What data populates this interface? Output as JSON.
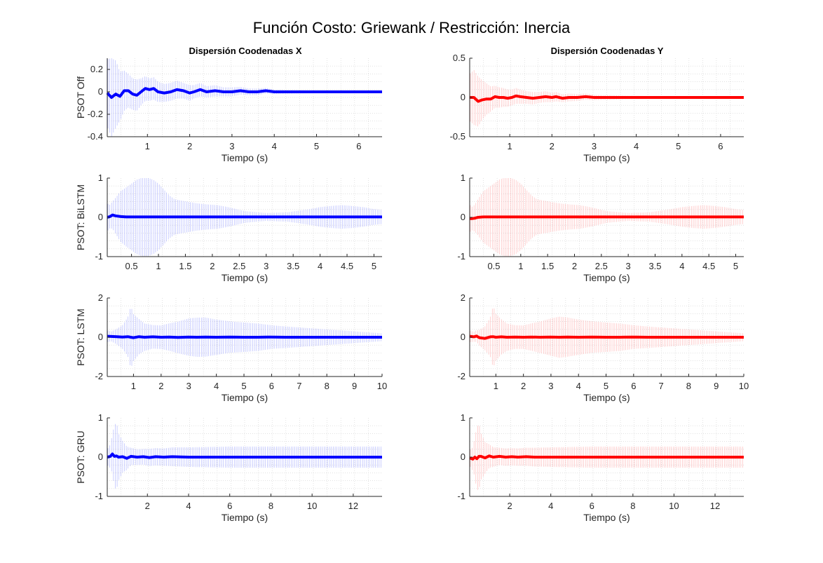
{
  "figure": {
    "title": "Función Costo: Griewank / Restricción: Inercia",
    "column_titles": [
      "Dispersión Coodenadas X",
      "Dispersión Coodenadas Y"
    ]
  },
  "colors": {
    "x_series": "#0000ff",
    "y_series": "#ff0000",
    "x_band": "#aab0ff",
    "y_band": "#ffb3b3",
    "grid": "#d0d0d0",
    "axis": "#262626"
  },
  "chart_data": [
    {
      "type": "line",
      "row": 0,
      "col": 0,
      "name": "psot-off-x",
      "ylabel": "PSOT Off",
      "xlabel": "Tiempo (s)",
      "xlim": [
        0.05,
        6.55
      ],
      "ylim": [
        -0.4,
        0.3
      ],
      "xticks": [
        1,
        2,
        3,
        4,
        5,
        6
      ],
      "xtick_labels": [
        "1",
        "2",
        "3",
        "4",
        "5",
        "6"
      ],
      "yticks": [
        -0.4,
        -0.2,
        0,
        0.2
      ],
      "ytick_labels": [
        "-0.4",
        "-0.2",
        "0",
        "0.2"
      ],
      "x": [
        0.05,
        0.15,
        0.25,
        0.35,
        0.45,
        0.55,
        0.65,
        0.75,
        0.85,
        0.95,
        1.05,
        1.15,
        1.25,
        1.4,
        1.55,
        1.7,
        1.85,
        2.0,
        2.1,
        2.25,
        2.4,
        2.6,
        2.8,
        3.0,
        3.2,
        3.4,
        3.6,
        3.8,
        4.0,
        4.5,
        5.0,
        5.5,
        6.0,
        6.55
      ],
      "mean": [
        -0.01,
        -0.05,
        -0.02,
        -0.04,
        0.01,
        0.01,
        -0.02,
        -0.03,
        0.0,
        0.03,
        0.02,
        0.03,
        0.0,
        -0.01,
        0.0,
        0.02,
        0.01,
        -0.01,
        0.0,
        0.02,
        0.0,
        0.01,
        0.0,
        0.0,
        0.01,
        0.0,
        0.0,
        0.01,
        0.0,
        0.0,
        0.0,
        0.0,
        0.0,
        0.0
      ],
      "spread": [
        0.3,
        0.35,
        0.3,
        0.22,
        0.18,
        0.15,
        0.14,
        0.14,
        0.12,
        0.11,
        0.1,
        0.1,
        0.09,
        0.08,
        0.08,
        0.08,
        0.07,
        0.07,
        0.06,
        0.06,
        0.05,
        0.05,
        0.04,
        0.04,
        0.035,
        0.03,
        0.03,
        0.025,
        0.02,
        0.015,
        0.012,
        0.01,
        0.01,
        0.01
      ]
    },
    {
      "type": "line",
      "row": 0,
      "col": 1,
      "name": "psot-off-y",
      "ylabel": "",
      "xlabel": "Tiempo (s)",
      "xlim": [
        0.05,
        6.55
      ],
      "ylim": [
        -0.5,
        0.5
      ],
      "xticks": [
        1,
        2,
        3,
        4,
        5,
        6
      ],
      "xtick_labels": [
        "1",
        "2",
        "3",
        "4",
        "5",
        "6"
      ],
      "yticks": [
        -0.5,
        0,
        0.5
      ],
      "ytick_labels": [
        "-0.5",
        "0",
        "0.5"
      ],
      "x": [
        0.05,
        0.15,
        0.25,
        0.35,
        0.45,
        0.55,
        0.65,
        0.75,
        0.85,
        0.95,
        1.05,
        1.15,
        1.25,
        1.4,
        1.55,
        1.7,
        1.85,
        2.0,
        2.1,
        2.25,
        2.4,
        2.6,
        2.8,
        3.0,
        3.2,
        3.4,
        3.6,
        3.8,
        4.0,
        4.5,
        5.0,
        5.5,
        6.0,
        6.55
      ],
      "mean": [
        0.0,
        0.0,
        -0.05,
        -0.03,
        -0.02,
        -0.02,
        0.01,
        0.0,
        0.0,
        -0.01,
        0.0,
        0.02,
        0.01,
        0.0,
        -0.01,
        0.0,
        0.01,
        0.0,
        0.01,
        -0.01,
        0.0,
        0.0,
        0.01,
        0.0,
        0.0,
        0.0,
        0.0,
        0.0,
        0.0,
        0.0,
        0.0,
        0.0,
        0.0,
        0.0
      ],
      "spread": [
        0.3,
        0.35,
        0.32,
        0.25,
        0.2,
        0.16,
        0.14,
        0.13,
        0.12,
        0.11,
        0.1,
        0.1,
        0.09,
        0.08,
        0.08,
        0.07,
        0.07,
        0.06,
        0.06,
        0.05,
        0.05,
        0.045,
        0.04,
        0.035,
        0.03,
        0.03,
        0.025,
        0.02,
        0.02,
        0.015,
        0.012,
        0.01,
        0.01,
        0.01
      ]
    },
    {
      "type": "line",
      "row": 1,
      "col": 0,
      "name": "psot-bilstm-x",
      "ylabel": "PSOT: BiLSTM",
      "xlabel": "Tiempo (s)",
      "xlim": [
        0.05,
        5.15
      ],
      "ylim": [
        -1,
        1
      ],
      "xticks": [
        0.5,
        1,
        1.5,
        2,
        2.5,
        3,
        3.5,
        4,
        4.5,
        5
      ],
      "xtick_labels": [
        "0.5",
        "1",
        "1.5",
        "2",
        "2.5",
        "3",
        "3.5",
        "4",
        "4.5",
        "5"
      ],
      "yticks": [
        -1,
        0,
        1
      ],
      "ytick_labels": [
        "-1",
        "0",
        "1"
      ],
      "x": [
        0.05,
        0.1,
        0.15,
        0.2,
        0.3,
        0.4,
        0.5,
        0.6,
        0.7,
        0.8,
        0.9,
        1.0,
        1.1,
        1.2,
        1.3,
        1.5,
        1.7,
        1.9,
        2.1,
        2.3,
        2.6,
        3.0,
        3.4,
        3.8,
        4.0,
        4.2,
        4.4,
        4.6,
        4.8,
        5.0,
        5.15
      ],
      "mean": [
        0.0,
        0.02,
        0.06,
        0.04,
        0.02,
        0.01,
        0.01,
        0.01,
        0.01,
        0.01,
        0.01,
        0.01,
        0.01,
        0.01,
        0.01,
        0.01,
        0.01,
        0.01,
        0.01,
        0.01,
        0.01,
        0.01,
        0.01,
        0.01,
        0.01,
        0.01,
        0.01,
        0.01,
        0.01,
        0.01,
        0.01
      ],
      "spread": [
        0.35,
        0.3,
        0.35,
        0.45,
        0.65,
        0.75,
        0.85,
        0.95,
        1.0,
        1.0,
        0.95,
        0.85,
        0.7,
        0.55,
        0.45,
        0.4,
        0.35,
        0.32,
        0.3,
        0.25,
        0.15,
        0.1,
        0.12,
        0.2,
        0.25,
        0.28,
        0.3,
        0.28,
        0.25,
        0.2,
        0.18
      ]
    },
    {
      "type": "line",
      "row": 1,
      "col": 1,
      "name": "psot-bilstm-y",
      "ylabel": "",
      "xlabel": "Tiempo (s)",
      "xlim": [
        0.05,
        5.15
      ],
      "ylim": [
        -1,
        1
      ],
      "xticks": [
        0.5,
        1,
        1.5,
        2,
        2.5,
        3,
        3.5,
        4,
        4.5,
        5
      ],
      "xtick_labels": [
        "0.5",
        "1",
        "1.5",
        "2",
        "2.5",
        "3",
        "3.5",
        "4",
        "4.5",
        "5"
      ],
      "yticks": [
        -1,
        0,
        1
      ],
      "ytick_labels": [
        "-1",
        "0",
        "1"
      ],
      "x": [
        0.05,
        0.1,
        0.15,
        0.2,
        0.3,
        0.4,
        0.5,
        0.6,
        0.7,
        0.8,
        0.9,
        1.0,
        1.1,
        1.2,
        1.3,
        1.5,
        1.7,
        1.9,
        2.1,
        2.3,
        2.6,
        3.0,
        3.4,
        3.8,
        4.0,
        4.2,
        4.4,
        4.6,
        4.8,
        5.0,
        5.15
      ],
      "mean": [
        -0.03,
        -0.03,
        -0.02,
        0.0,
        0.01,
        0.01,
        0.01,
        0.01,
        0.01,
        0.01,
        0.01,
        0.01,
        0.01,
        0.01,
        0.01,
        0.01,
        0.01,
        0.01,
        0.01,
        0.01,
        0.01,
        0.01,
        0.01,
        0.01,
        0.01,
        0.01,
        0.01,
        0.01,
        0.01,
        0.01,
        0.01
      ],
      "spread": [
        0.35,
        0.3,
        0.35,
        0.45,
        0.65,
        0.75,
        0.85,
        0.95,
        1.0,
        1.0,
        0.95,
        0.85,
        0.7,
        0.55,
        0.45,
        0.4,
        0.35,
        0.32,
        0.3,
        0.25,
        0.15,
        0.1,
        0.12,
        0.2,
        0.25,
        0.28,
        0.3,
        0.28,
        0.25,
        0.2,
        0.18
      ]
    },
    {
      "type": "line",
      "row": 2,
      "col": 0,
      "name": "psot-lstm-x",
      "ylabel": "PSOT: LSTM",
      "xlabel": "Tiempo (s)",
      "xlim": [
        0.05,
        10.0
      ],
      "ylim": [
        -2,
        2
      ],
      "xticks": [
        1,
        2,
        3,
        4,
        5,
        6,
        7,
        8,
        9,
        10
      ],
      "xtick_labels": [
        "1",
        "2",
        "3",
        "4",
        "5",
        "6",
        "7",
        "8",
        "9",
        "10"
      ],
      "yticks": [
        -2,
        0,
        2
      ],
      "ytick_labels": [
        "-2",
        "0",
        "2"
      ],
      "x": [
        0.05,
        0.2,
        0.4,
        0.6,
        0.8,
        0.9,
        1.0,
        1.2,
        1.4,
        1.7,
        2.0,
        2.3,
        2.6,
        3.0,
        3.3,
        3.6,
        4.0,
        4.5,
        5.0,
        5.5,
        6.0,
        6.5,
        7.0,
        7.5,
        8.0,
        8.5,
        9.0,
        9.5,
        10.0
      ],
      "mean": [
        0.05,
        0.04,
        0.03,
        0.01,
        0.03,
        0.0,
        -0.02,
        0.03,
        0.0,
        0.02,
        0.0,
        0.01,
        -0.01,
        0.01,
        0.0,
        0.01,
        0.0,
        0.01,
        0.0,
        0.0,
        0.01,
        0.0,
        0.0,
        0.0,
        0.0,
        0.0,
        0.0,
        0.0,
        0.0
      ],
      "spread": [
        0.3,
        0.25,
        0.4,
        0.6,
        1.0,
        1.6,
        1.2,
        0.9,
        0.7,
        0.6,
        0.6,
        0.7,
        0.8,
        0.95,
        1.0,
        1.0,
        0.9,
        0.8,
        0.75,
        0.7,
        0.6,
        0.55,
        0.5,
        0.45,
        0.4,
        0.35,
        0.3,
        0.25,
        0.2
      ]
    },
    {
      "type": "line",
      "row": 2,
      "col": 1,
      "name": "psot-lstm-y",
      "ylabel": "",
      "xlabel": "Tiempo (s)",
      "xlim": [
        0.05,
        10.0
      ],
      "ylim": [
        -2,
        2
      ],
      "xticks": [
        1,
        2,
        3,
        4,
        5,
        6,
        7,
        8,
        9,
        10
      ],
      "xtick_labels": [
        "1",
        "2",
        "3",
        "4",
        "5",
        "6",
        "7",
        "8",
        "9",
        "10"
      ],
      "yticks": [
        -2,
        0,
        2
      ],
      "ytick_labels": [
        "-2",
        "0",
        "2"
      ],
      "x": [
        0.05,
        0.2,
        0.3,
        0.4,
        0.6,
        0.8,
        0.9,
        1.0,
        1.2,
        1.4,
        1.7,
        2.0,
        2.3,
        2.6,
        3.0,
        3.3,
        3.6,
        4.0,
        4.5,
        5.0,
        5.5,
        6.0,
        6.5,
        7.0,
        7.5,
        8.0,
        8.5,
        9.0,
        9.5,
        10.0
      ],
      "mean": [
        0.05,
        0.02,
        0.06,
        -0.02,
        -0.06,
        0.02,
        0.03,
        0.0,
        0.02,
        0.0,
        0.01,
        0.0,
        0.01,
        0.0,
        0.01,
        0.0,
        0.01,
        0.0,
        0.01,
        0.0,
        0.0,
        0.01,
        0.0,
        0.0,
        0.0,
        0.0,
        0.0,
        0.0,
        0.0,
        0.0
      ],
      "spread": [
        0.3,
        0.25,
        0.3,
        0.4,
        0.6,
        1.0,
        1.6,
        1.2,
        0.9,
        0.7,
        0.6,
        0.6,
        0.7,
        0.8,
        0.95,
        1.05,
        1.0,
        0.9,
        0.8,
        0.75,
        0.7,
        0.6,
        0.55,
        0.5,
        0.45,
        0.4,
        0.35,
        0.3,
        0.25,
        0.2
      ]
    },
    {
      "type": "line",
      "row": 3,
      "col": 0,
      "name": "psot-gru-x",
      "ylabel": "PSOT: GRU",
      "xlabel": "Tiempo (s)",
      "xlim": [
        0.05,
        13.4
      ],
      "ylim": [
        -1,
        1
      ],
      "xticks": [
        2,
        4,
        6,
        8,
        10,
        12
      ],
      "xtick_labels": [
        "2",
        "4",
        "6",
        "8",
        "10",
        "12"
      ],
      "yticks": [
        -1,
        0,
        1
      ],
      "ytick_labels": [
        "-1",
        "0",
        "1"
      ],
      "x": [
        0.05,
        0.2,
        0.3,
        0.4,
        0.5,
        0.6,
        0.8,
        1.0,
        1.2,
        1.5,
        1.8,
        2.1,
        2.4,
        2.8,
        3.2,
        4.0,
        5.0,
        6.0,
        7.0,
        8.0,
        9.0,
        10.0,
        11.0,
        12.0,
        13.4
      ],
      "mean": [
        0.0,
        0.02,
        0.08,
        0.02,
        0.03,
        0.0,
        0.01,
        -0.03,
        0.02,
        0.0,
        0.01,
        -0.01,
        0.01,
        0.0,
        0.01,
        0.0,
        0.0,
        0.0,
        0.0,
        0.0,
        0.0,
        0.0,
        0.0,
        0.0,
        0.0
      ],
      "spread": [
        0.2,
        0.3,
        0.5,
        0.8,
        0.85,
        0.6,
        0.4,
        0.3,
        0.22,
        0.2,
        0.2,
        0.22,
        0.22,
        0.22,
        0.24,
        0.25,
        0.26,
        0.27,
        0.27,
        0.27,
        0.27,
        0.27,
        0.27,
        0.27,
        0.27
      ]
    },
    {
      "type": "line",
      "row": 3,
      "col": 1,
      "name": "psot-gru-y",
      "ylabel": "",
      "xlabel": "Tiempo (s)",
      "xlim": [
        0.05,
        13.4
      ],
      "ylim": [
        -1,
        1
      ],
      "xticks": [
        2,
        4,
        6,
        8,
        10,
        12
      ],
      "xtick_labels": [
        "2",
        "4",
        "6",
        "8",
        "10",
        "12"
      ],
      "yticks": [
        -1,
        0,
        1
      ],
      "ytick_labels": [
        "-1",
        "0",
        "1"
      ],
      "x": [
        0.05,
        0.2,
        0.3,
        0.4,
        0.5,
        0.6,
        0.8,
        1.0,
        1.2,
        1.5,
        1.8,
        2.1,
        2.4,
        2.8,
        3.2,
        4.0,
        5.0,
        6.0,
        7.0,
        8.0,
        9.0,
        10.0,
        11.0,
        12.0,
        13.4
      ],
      "mean": [
        -0.02,
        -0.05,
        0.0,
        -0.04,
        0.02,
        0.02,
        -0.02,
        0.03,
        0.0,
        0.02,
        0.0,
        0.01,
        0.0,
        0.01,
        0.0,
        0.0,
        0.0,
        0.0,
        0.0,
        0.0,
        0.0,
        0.0,
        0.0,
        0.0,
        0.0
      ],
      "spread": [
        0.2,
        0.3,
        0.5,
        0.8,
        0.85,
        0.6,
        0.4,
        0.3,
        0.25,
        0.22,
        0.22,
        0.22,
        0.22,
        0.23,
        0.24,
        0.25,
        0.26,
        0.27,
        0.27,
        0.27,
        0.27,
        0.27,
        0.27,
        0.27,
        0.27
      ]
    }
  ]
}
